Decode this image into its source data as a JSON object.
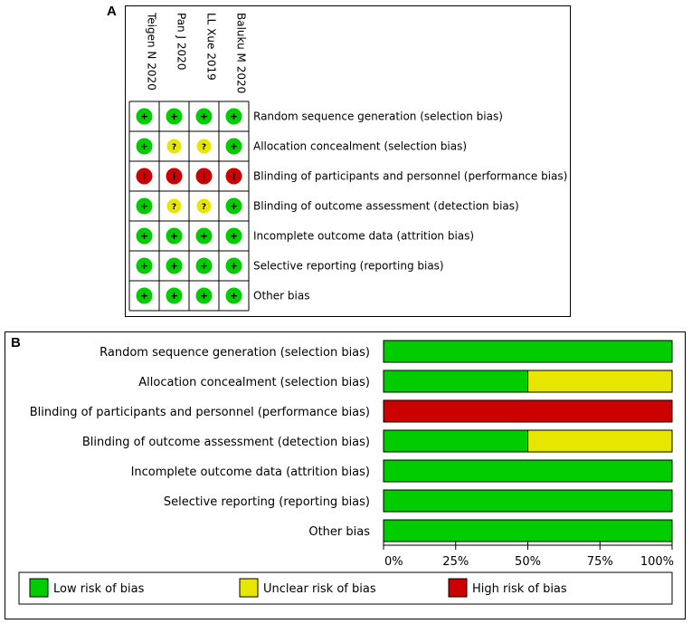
{
  "panels": {
    "a": "A",
    "b": "B"
  },
  "colors": {
    "low": "#00cc00",
    "unclear": "#e6e600",
    "high": "#cc0000",
    "border": "#000000"
  },
  "chart_data": [
    {
      "type": "table",
      "title": "A",
      "studies": [
        "Teigen N 2020",
        "Pan J 2020",
        "LL Xue 2019",
        "Baluku M 2020"
      ],
      "domains": [
        "Random sequence generation (selection bias)",
        "Allocation concealment (selection bias)",
        "Blinding of participants and personnel (performance bias)",
        "Blinding of outcome assessment (detection bias)",
        "Incomplete outcome data (attrition bias)",
        "Selective reporting (reporting bias)",
        "Other bias"
      ],
      "symbols": {
        "low": "+",
        "unclear": "?",
        "high": "-"
      },
      "judgements": [
        [
          "low",
          "low",
          "low",
          "low"
        ],
        [
          "low",
          "unclear",
          "unclear",
          "low"
        ],
        [
          "high",
          "high",
          "high",
          "high"
        ],
        [
          "low",
          "unclear",
          "unclear",
          "low"
        ],
        [
          "low",
          "low",
          "low",
          "low"
        ],
        [
          "low",
          "low",
          "low",
          "low"
        ],
        [
          "low",
          "low",
          "low",
          "low"
        ]
      ]
    },
    {
      "type": "bar",
      "title": "B",
      "stacked": true,
      "orientation": "horizontal",
      "categories": [
        "Random sequence generation (selection bias)",
        "Allocation concealment (selection bias)",
        "Blinding of participants and personnel (performance bias)",
        "Blinding of outcome assessment (detection bias)",
        "Incomplete outcome data (attrition bias)",
        "Selective reporting (reporting bias)",
        "Other bias"
      ],
      "series": [
        {
          "name": "Low risk of bias",
          "key": "low",
          "values": [
            100,
            50,
            0,
            50,
            100,
            100,
            100
          ]
        },
        {
          "name": "Unclear risk of bias",
          "key": "unclear",
          "values": [
            0,
            50,
            0,
            50,
            0,
            0,
            0
          ]
        },
        {
          "name": "High risk of bias",
          "key": "high",
          "values": [
            0,
            0,
            100,
            0,
            0,
            0,
            0
          ]
        }
      ],
      "xlim": [
        0,
        100
      ],
      "xticks": [
        "0%",
        "25%",
        "50%",
        "75%",
        "100%"
      ],
      "legend_position": "bottom"
    }
  ]
}
